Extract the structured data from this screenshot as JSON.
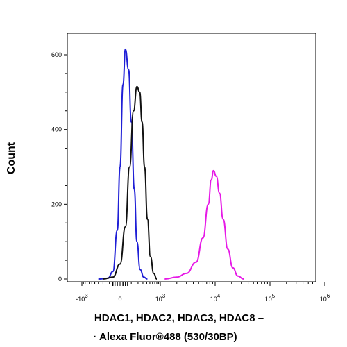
{
  "chart_data": {
    "type": "line",
    "xlabel_lines": [
      "HDAC1, HDAC2, HDAC3, HDAC8 –",
      "· Alexa Fluor®488 (530/30BP)"
    ],
    "ylabel": "Count",
    "x_scale": "biexponential",
    "x_ticks": [
      {
        "value": -1000,
        "base": "-10",
        "exp": "3"
      },
      {
        "value": 0,
        "base": "0",
        "exp": ""
      },
      {
        "value": 1000,
        "base": "10",
        "exp": "3"
      },
      {
        "value": 10000,
        "base": "10",
        "exp": "4"
      },
      {
        "value": 100000,
        "base": "10",
        "exp": "5"
      },
      {
        "value": 1000000,
        "base": "10",
        "exp": "6"
      }
    ],
    "ylim": [
      0,
      650
    ],
    "y_ticks": [
      0,
      200,
      400,
      600
    ],
    "grid": false,
    "series": [
      {
        "color": "#1f1fd6",
        "x": [
          -300,
          -120,
          -60,
          -20,
          0,
          20,
          40,
          70,
          100,
          140,
          180,
          240,
          320,
          420
        ],
        "y": [
          0,
          2,
          20,
          130,
          300,
          520,
          615,
          560,
          420,
          240,
          100,
          25,
          5,
          0
        ]
      },
      {
        "color": "#111111",
        "x": [
          -200,
          -60,
          0,
          40,
          80,
          130,
          180,
          230,
          280,
          340,
          420,
          520,
          650,
          800
        ],
        "y": [
          0,
          5,
          40,
          140,
          300,
          450,
          515,
          500,
          420,
          300,
          160,
          60,
          15,
          0
        ]
      },
      {
        "color": "#e619e6",
        "x": [
          1200,
          2000,
          3000,
          4500,
          6000,
          7500,
          8500,
          9300,
          10500,
          12000,
          14000,
          17000,
          21000,
          26000,
          33000
        ],
        "y": [
          0,
          5,
          15,
          45,
          110,
          200,
          265,
          290,
          275,
          230,
          160,
          80,
          30,
          8,
          0
        ]
      }
    ]
  }
}
